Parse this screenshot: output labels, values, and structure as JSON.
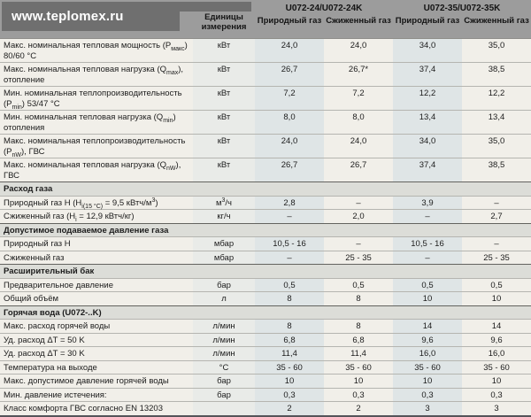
{
  "watermark": "www.teplomex.ru",
  "header": {
    "units_label": "Единицы измерения",
    "models": [
      {
        "name": "U072-24/U072-24K",
        "columns": [
          "Природный газ",
          "Сжиженный газ"
        ]
      },
      {
        "name": "U072-35/U072-35K",
        "columns": [
          "Природный газ",
          "Сжиженный газ"
        ]
      }
    ]
  },
  "colors": {
    "paper": "#f1efe9",
    "header_bg": "#9c9c9c",
    "watermark_bg": "#6f6f6f",
    "units_col": "#e9ebe8",
    "shaded_col": "#dfe5e6",
    "section_row": "#dcddd8"
  },
  "rows": [
    {
      "type": "spec",
      "label": "Макс. номинальная тепловая мощность (P<sub>макс</sub>) 80/60 °C",
      "unit": "кВт",
      "values": [
        "24,0",
        "24,0",
        "34,0",
        "35,0"
      ]
    },
    {
      "type": "spec",
      "label": "Макс. номинальная тепловая нагрузка (Q<sub>max</sub>), отопление",
      "unit": "кВт",
      "values": [
        "26,7",
        "26,7*",
        "37,4",
        "38,5"
      ]
    },
    {
      "type": "spec",
      "label": "Мин. номинальная теплопроизводительность (P<sub>min</sub>) 53/47 °C",
      "unit": "кВт",
      "values": [
        "7,2",
        "7,2",
        "12,2",
        "12,2"
      ]
    },
    {
      "type": "spec",
      "label": "Мин. номинальная тепловая нагрузка (Q<sub>min</sub>) отопления",
      "unit": "кВт",
      "values": [
        "8,0",
        "8,0",
        "13,4",
        "13,4"
      ]
    },
    {
      "type": "spec",
      "label": "Макс. номинальная теплопроизводительность (P<sub>nW</sub>), ГВС",
      "unit": "кВт",
      "values": [
        "24,0",
        "24,0",
        "34,0",
        "35,0"
      ]
    },
    {
      "type": "spec",
      "label": "Макс. номинальная тепловая нагрузка (Q<sub>nW</sub>), ГВС",
      "unit": "кВт",
      "values": [
        "26,7",
        "26,7",
        "37,4",
        "38,5"
      ]
    },
    {
      "type": "section",
      "label": "Расход газа"
    },
    {
      "type": "spec",
      "label": "Природный газ H (H<sub>i(15 °C)</sub> = 9,5 кВтч/м<sup>3</sup>)",
      "unit": "м<sup>3</sup>/ч",
      "values": [
        "2,8",
        "–",
        "3,9",
        "–"
      ]
    },
    {
      "type": "spec",
      "label": "Сжиженный газ (H<sub>i</sub> = 12,9 кВтч/кг)",
      "unit": "кг/ч",
      "values": [
        "–",
        "2,0",
        "–",
        "2,7"
      ]
    },
    {
      "type": "section",
      "label": "Допустимое подаваемое давление газа"
    },
    {
      "type": "spec",
      "label": "Природный газ H",
      "unit": "мбар",
      "values": [
        "10,5 - 16",
        "–",
        "10,5 - 16",
        "–"
      ]
    },
    {
      "type": "spec",
      "label": "Сжиженный газ",
      "unit": "мбар",
      "values": [
        "–",
        "25 - 35",
        "–",
        "25 - 35"
      ]
    },
    {
      "type": "section",
      "label": "Расширительный бак"
    },
    {
      "type": "spec",
      "label": "Предварительное давление",
      "unit": "бар",
      "values": [
        "0,5",
        "0,5",
        "0,5",
        "0,5"
      ]
    },
    {
      "type": "spec",
      "label": "Общий объём",
      "unit": "л",
      "values": [
        "8",
        "8",
        "10",
        "10"
      ]
    },
    {
      "type": "section",
      "label": "Горячая вода (U072-..K)"
    },
    {
      "type": "spec",
      "label": "Макс. расход горячей воды",
      "unit": "л/мин",
      "values": [
        "8",
        "8",
        "14",
        "14"
      ]
    },
    {
      "type": "spec",
      "label": "Уд. расход ΔT = 50 K",
      "unit": "л/мин",
      "values": [
        "6,8",
        "6,8",
        "9,6",
        "9,6"
      ]
    },
    {
      "type": "spec",
      "label": "Уд. расход ΔT = 30 K",
      "unit": "л/мин",
      "values": [
        "11,4",
        "11,4",
        "16,0",
        "16,0"
      ]
    },
    {
      "type": "spec",
      "label": "Температура на выходе",
      "unit": "°C",
      "values": [
        "35 - 60",
        "35 - 60",
        "35 - 60",
        "35 - 60"
      ]
    },
    {
      "type": "spec",
      "label": "Макс. допустимое давление горячей воды",
      "unit": "бар",
      "values": [
        "10",
        "10",
        "10",
        "10"
      ]
    },
    {
      "type": "spec",
      "label": "Мин. давление истечения:",
      "unit": "бар",
      "values": [
        "0,3",
        "0,3",
        "0,3",
        "0,3"
      ]
    },
    {
      "type": "spec",
      "label": "Класс комфорта ГВС согласно EN 13203",
      "unit": "",
      "values": [
        "2",
        "2",
        "3",
        "3"
      ]
    }
  ]
}
